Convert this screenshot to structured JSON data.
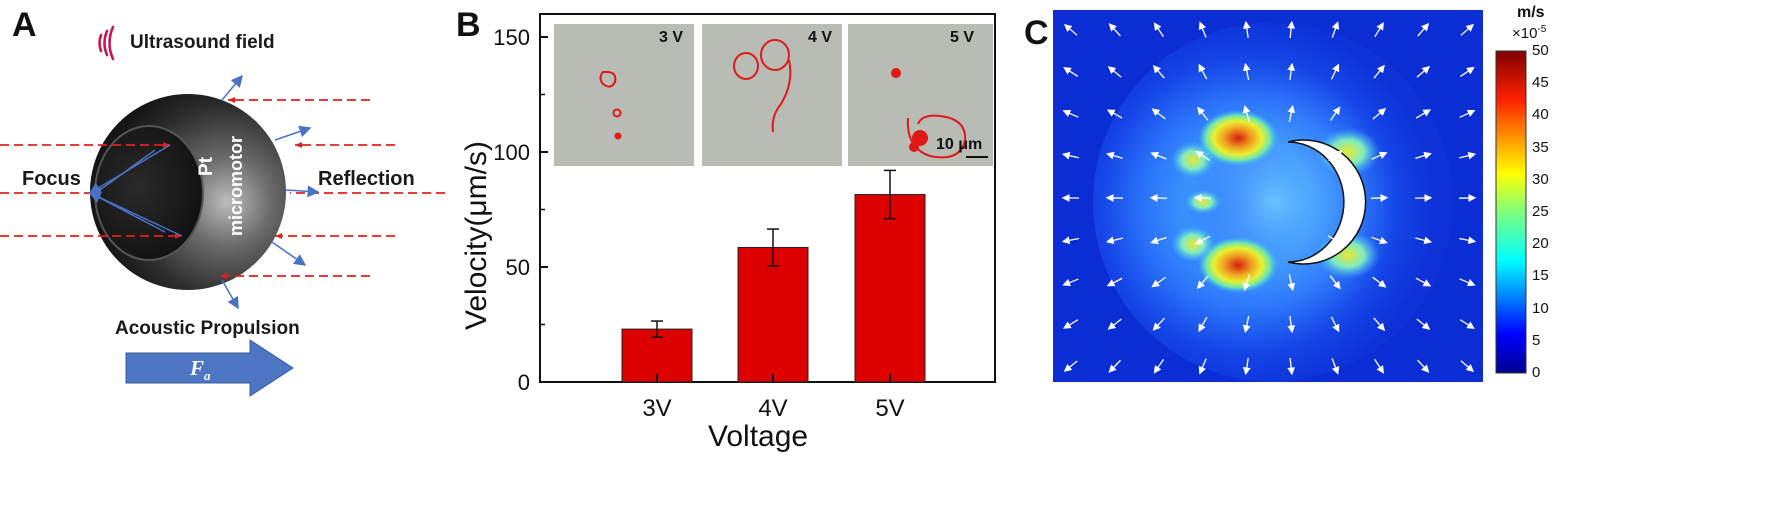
{
  "panels": {
    "a": {
      "letter": "A",
      "ultrasound_label": "Ultrasound field",
      "focus_label": "Focus",
      "reflection_label": "Reflection",
      "micromotor_label_1": "Pt",
      "micromotor_label_2": "micromotor",
      "propulsion_label": "Acoustic Propulsion",
      "force_label": "F",
      "force_sub": "a",
      "colors": {
        "sphere": "#3a3a3a",
        "dashed": "#e02020",
        "arrow": "#4a72c4",
        "force_arrow": "#4e74c4",
        "wave": "#c2185b"
      }
    },
    "b": {
      "letter": "B",
      "insets": [
        {
          "label": "3 V"
        },
        {
          "label": "4 V"
        },
        {
          "label": "5 V",
          "scale": "10 μm"
        }
      ]
    },
    "c": {
      "letter": "C",
      "colorbar": {
        "unit": "m/s",
        "multiplier": "×10",
        "exponent": "-5",
        "ticks": [
          "50",
          "45",
          "40",
          "35",
          "30",
          "25",
          "20",
          "15",
          "10",
          "5",
          "0"
        ]
      }
    }
  },
  "chart_data": {
    "type": "bar",
    "categories": [
      "3V",
      "4V",
      "5V"
    ],
    "values": [
      23,
      58.5,
      81.5
    ],
    "errors": [
      3.5,
      8,
      10.5
    ],
    "xlabel": "Voltage",
    "ylabel": "Velocity(μm/s)",
    "ylim": [
      0,
      160
    ],
    "yticks": [
      "0",
      "50",
      "100",
      "150"
    ],
    "bar_color": "#dd0000"
  }
}
